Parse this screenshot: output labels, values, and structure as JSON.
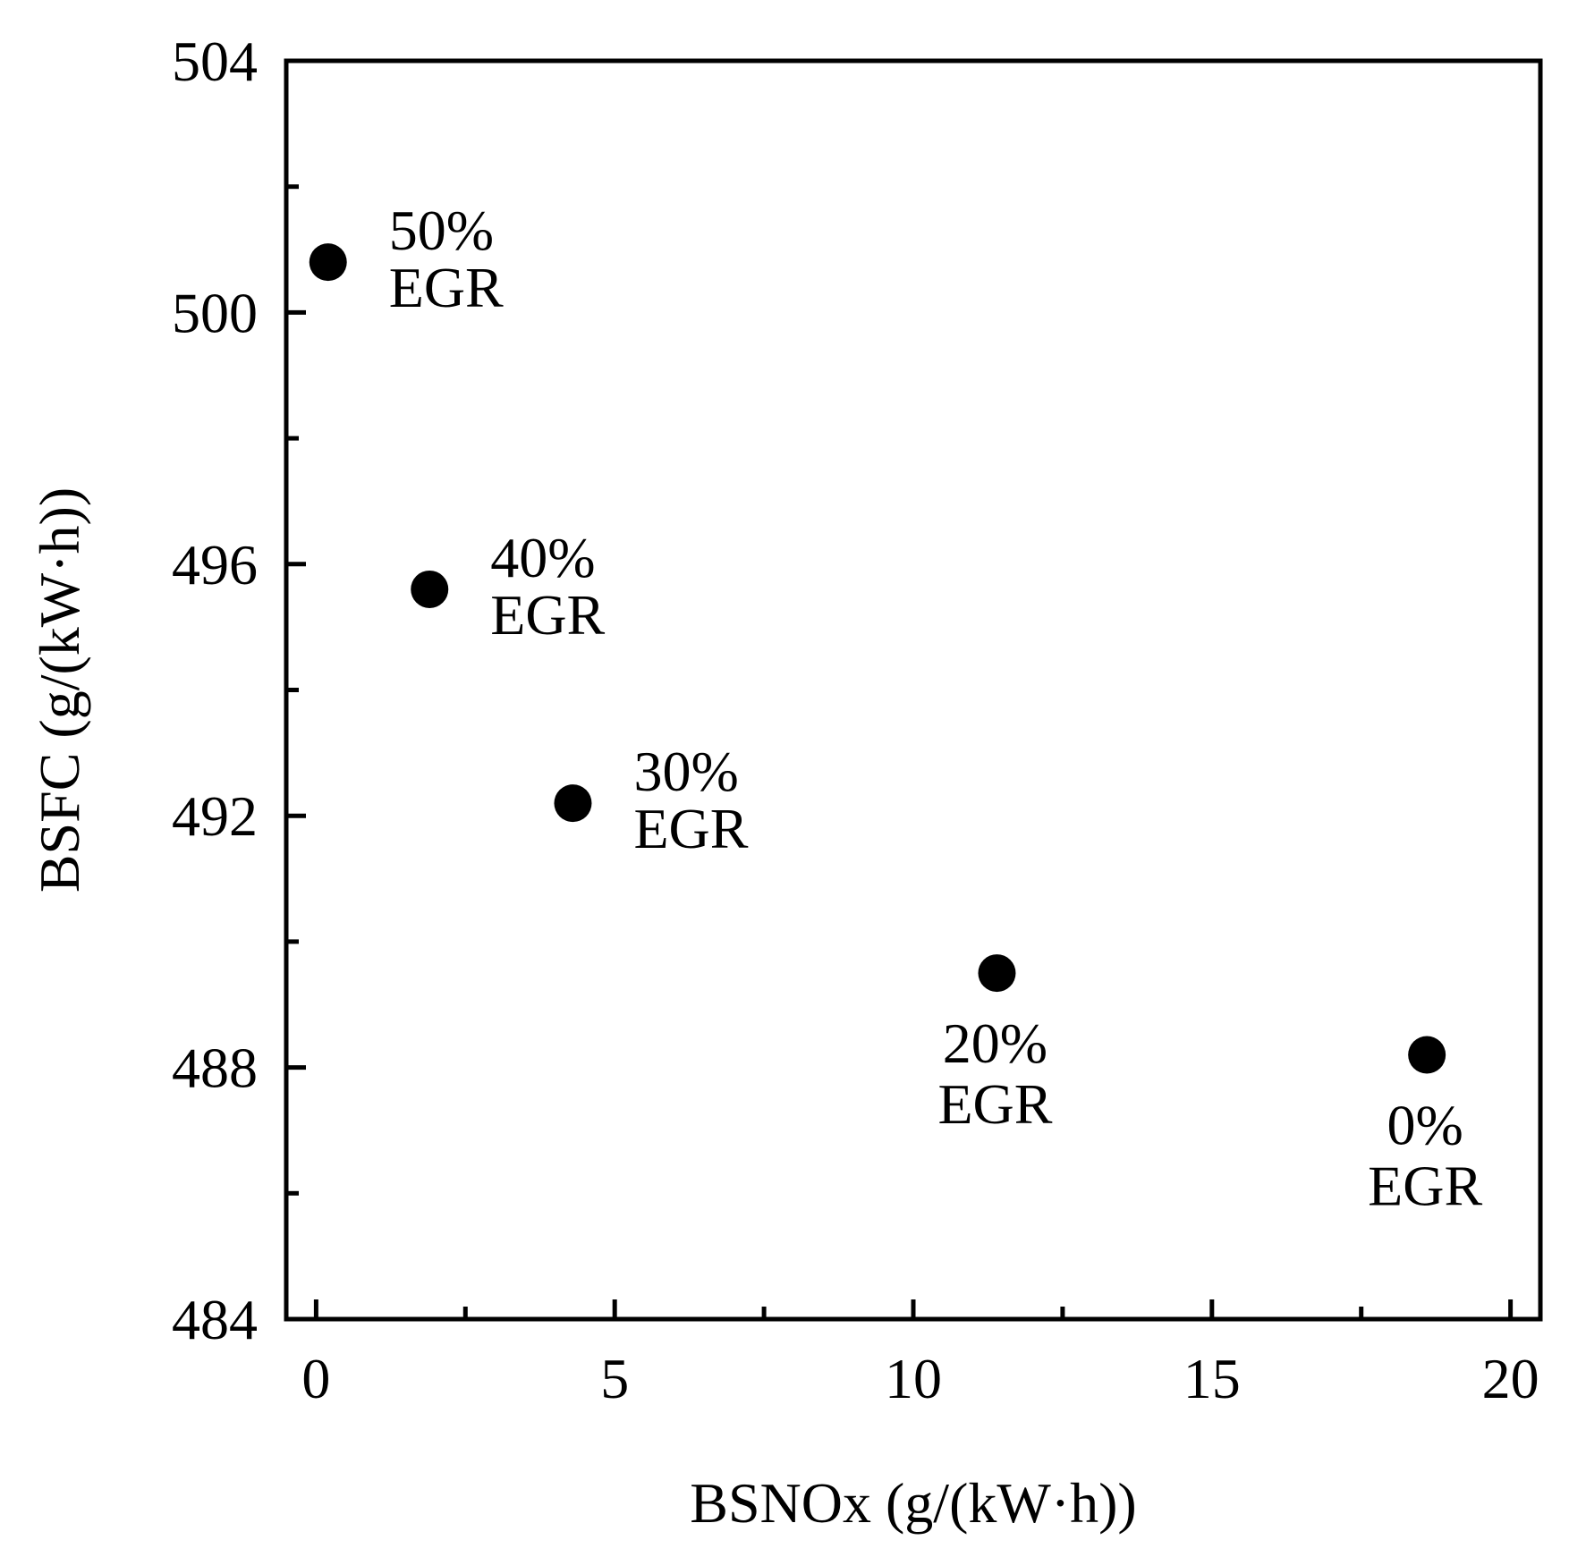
{
  "chart_data": {
    "type": "scatter",
    "xlabel": "BSNOx (g/(kW·h))",
    "ylabel": "BSFC (g/(kW·h))",
    "xlim": [
      -0.5,
      20.5
    ],
    "ylim": [
      484,
      504
    ],
    "x_ticks": [
      0,
      5,
      10,
      15,
      20
    ],
    "x_minor_ticks": [
      2.5,
      7.5,
      12.5,
      17.5
    ],
    "y_ticks": [
      484,
      488,
      492,
      496,
      500,
      504
    ],
    "y_minor_ticks": [
      486,
      490,
      494,
      498,
      502
    ],
    "grid": false,
    "series": [
      {
        "points": [
          {
            "x": 0.2,
            "y": 500.8,
            "label_line1": "50%",
            "label_line2": "EGR",
            "label_position": "right"
          },
          {
            "x": 1.9,
            "y": 495.6,
            "label_line1": "40%",
            "label_line2": "EGR",
            "label_position": "right"
          },
          {
            "x": 4.3,
            "y": 492.2,
            "label_line1": "30%",
            "label_line2": "EGR",
            "label_position": "right"
          },
          {
            "x": 11.4,
            "y": 489.5,
            "label_line1": "20%",
            "label_line2": "EGR",
            "label_position": "below"
          },
          {
            "x": 18.6,
            "y": 488.2,
            "label_line1": "0%",
            "label_line2": "EGR",
            "label_position": "below"
          }
        ]
      }
    ],
    "colors": {
      "axis": "#000000",
      "marker": "#000000",
      "background": "#ffffff"
    }
  }
}
